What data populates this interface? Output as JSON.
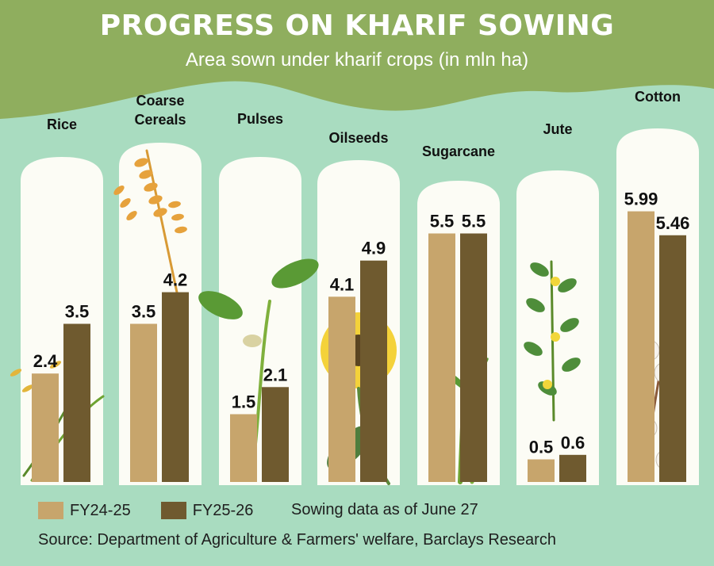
{
  "header": {
    "title": "PROGRESS ON KHARIF SOWING",
    "subtitle": "Area sown under kharif crops (in mln ha)"
  },
  "colors": {
    "background": "#a9dcc0",
    "header_band": "#8fae5e",
    "panel": "#fcfcf5",
    "fy24_25": "#c7a56c",
    "fy25_26": "#6f5a2f"
  },
  "chart_data": {
    "type": "bar",
    "categories": [
      "Rice",
      "Coarse Cereals",
      "Pulses",
      "Oilseeds",
      "Sugarcane",
      "Jute",
      "Cotton"
    ],
    "series": [
      {
        "name": "FY24-25",
        "values": [
          2.4,
          3.5,
          1.5,
          4.1,
          5.5,
          0.5,
          5.99
        ]
      },
      {
        "name": "FY25-26",
        "values": [
          3.5,
          4.2,
          2.1,
          4.9,
          5.5,
          0.6,
          5.46
        ]
      }
    ],
    "value_labels": [
      [
        "2.4",
        "3.5"
      ],
      [
        "3.5",
        "4.2"
      ],
      [
        "1.5",
        "2.1"
      ],
      [
        "4.1",
        "4.9"
      ],
      [
        "5.5",
        "5.5"
      ],
      [
        "0.5",
        "0.6"
      ],
      [
        "5.99",
        "5.46"
      ]
    ],
    "legend_placement": "bottom-left",
    "grid": false
  },
  "legend": {
    "fy24_25": "FY24-25",
    "fy25_26": "FY25-26"
  },
  "note": "Sowing data as of June 27",
  "source": "Source: Department of Agriculture & Farmers' welfare, Barclays Research"
}
